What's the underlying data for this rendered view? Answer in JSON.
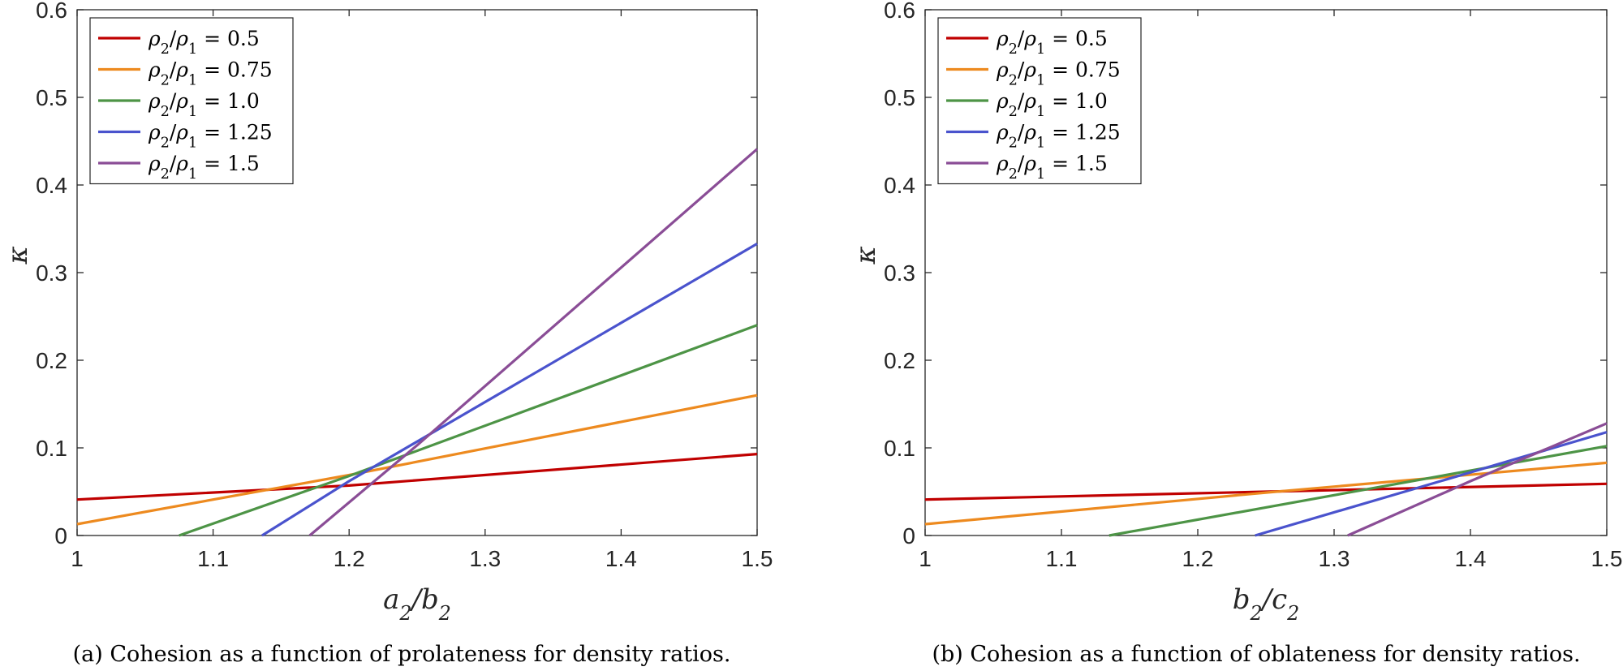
{
  "chart_data": [
    {
      "type": "line",
      "xlabel": "a2/b2",
      "ylabel": "κ",
      "xlim": [
        1,
        1.5
      ],
      "ylim": [
        0,
        0.6
      ],
      "xticks": [
        "1",
        "1.1",
        "1.2",
        "1.3",
        "1.4",
        "1.5"
      ],
      "yticks": [
        "0",
        "0.1",
        "0.2",
        "0.3",
        "0.4",
        "0.5",
        "0.6"
      ],
      "legend_position": "top-left",
      "caption": "(a) Cohesion as a function of prolateness for density ratios.",
      "series": [
        {
          "name": "ρ2/ρ1 = 0.5",
          "color": "#c00000",
          "x": [
            1.0,
            1.2,
            1.5
          ],
          "y": [
            0.041,
            0.057,
            0.093
          ]
        },
        {
          "name": "ρ2/ρ1 = 0.75",
          "color": "#ed8a1f",
          "x": [
            1.0,
            1.2,
            1.5
          ],
          "y": [
            0.013,
            0.069,
            0.16
          ]
        },
        {
          "name": "ρ2/ρ1 = 1.0",
          "color": "#4d9446",
          "x": [
            1.075,
            1.2,
            1.5
          ],
          "y": [
            0.0,
            0.068,
            0.24
          ]
        },
        {
          "name": "ρ2/ρ1 = 1.25",
          "color": "#4a53cd",
          "x": [
            1.136,
            1.2,
            1.5
          ],
          "y": [
            0.0,
            0.062,
            0.333
          ]
        },
        {
          "name": "ρ2/ρ1 = 1.5",
          "color": "#8a4d96",
          "x": [
            1.171,
            1.25,
            1.5
          ],
          "y": [
            0.0,
            0.103,
            0.441
          ]
        }
      ]
    },
    {
      "type": "line",
      "xlabel": "b2/c2",
      "ylabel": "κ",
      "xlim": [
        1,
        1.5
      ],
      "ylim": [
        0,
        0.6
      ],
      "xticks": [
        "1",
        "1.1",
        "1.2",
        "1.3",
        "1.4",
        "1.5"
      ],
      "yticks": [
        "0",
        "0.1",
        "0.2",
        "0.3",
        "0.4",
        "0.5",
        "0.6"
      ],
      "legend_position": "top-left",
      "caption": "(b) Cohesion as a function of oblateness for density ratios.",
      "series": [
        {
          "name": "ρ2/ρ1 = 0.5",
          "color": "#c00000",
          "x": [
            1.0,
            1.25,
            1.5
          ],
          "y": [
            0.041,
            0.05,
            0.059
          ]
        },
        {
          "name": "ρ2/ρ1 = 0.75",
          "color": "#ed8a1f",
          "x": [
            1.0,
            1.25,
            1.5
          ],
          "y": [
            0.013,
            0.049,
            0.083
          ]
        },
        {
          "name": "ρ2/ρ1 = 1.0",
          "color": "#4d9446",
          "x": [
            1.135,
            1.3,
            1.5
          ],
          "y": [
            0.0,
            0.046,
            0.102
          ]
        },
        {
          "name": "ρ2/ρ1 = 1.25",
          "color": "#4a53cd",
          "x": [
            1.242,
            1.4,
            1.5
          ],
          "y": [
            0.0,
            0.072,
            0.118
          ]
        },
        {
          "name": "ρ2/ρ1 = 1.5",
          "color": "#8a4d96",
          "x": [
            1.31,
            1.4,
            1.5
          ],
          "y": [
            0.0,
            0.062,
            0.128
          ]
        }
      ]
    }
  ]
}
